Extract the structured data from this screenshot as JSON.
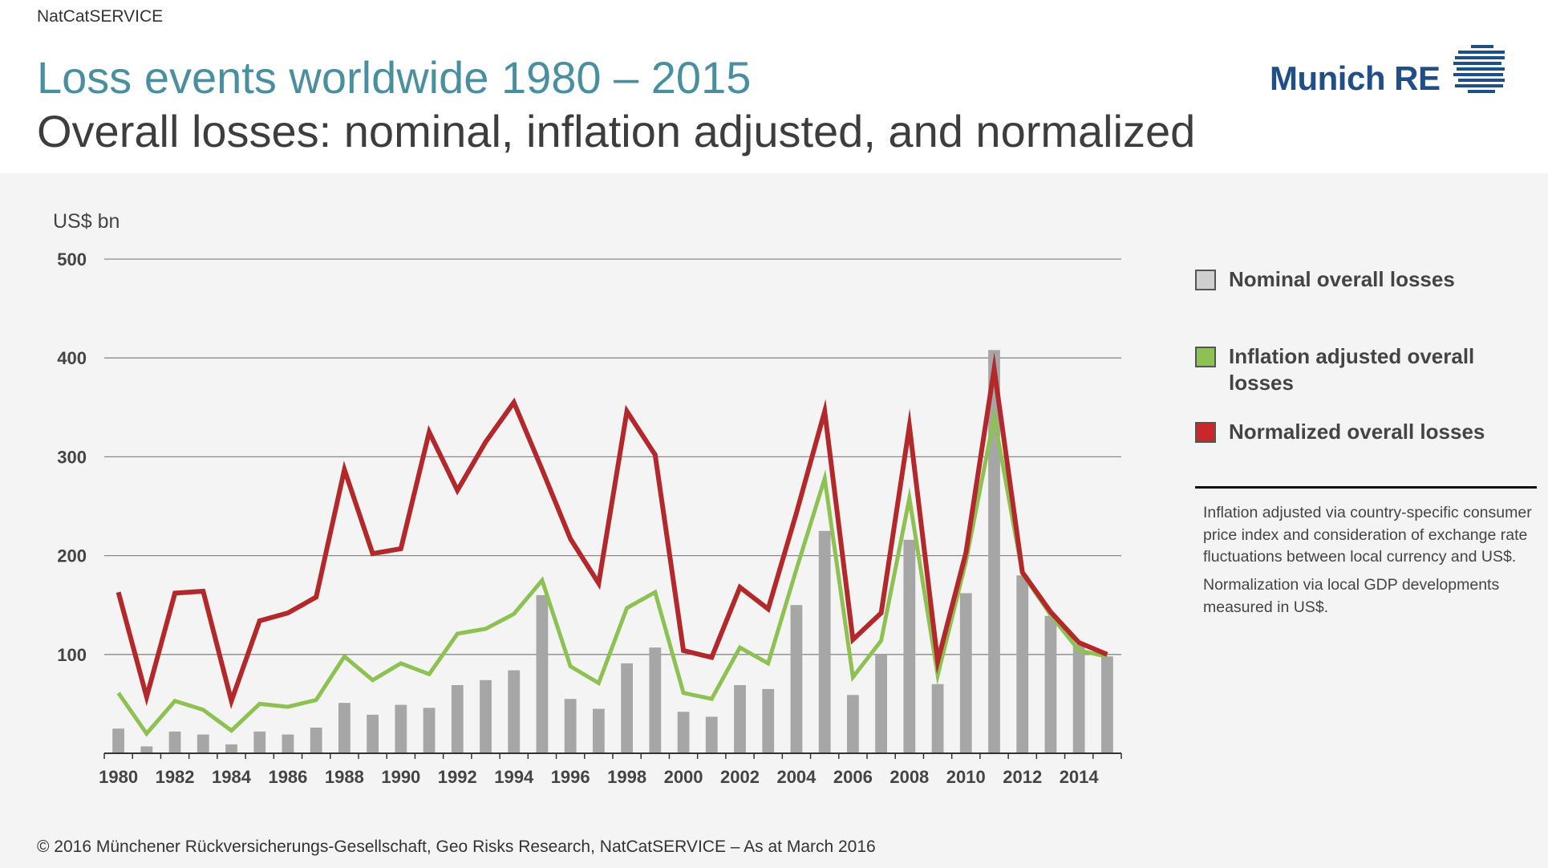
{
  "header": {
    "source_tag": "NatCatSERVICE",
    "title": "Loss events worldwide 1980 – 2015",
    "subtitle": "Overall losses: nominal, inflation adjusted, and normalized"
  },
  "logo": {
    "text": "Munich RE",
    "icon": "munich-re-logo-icon"
  },
  "chart_data": {
    "type": "bar",
    "ylabel": "US$ bn",
    "ylim": [
      0,
      500
    ],
    "yticks": [
      100,
      200,
      300,
      400,
      500
    ],
    "x_tick_labels": [
      "1980",
      "1982",
      "1984",
      "1986",
      "1988",
      "1990",
      "1992",
      "1994",
      "1996",
      "1998",
      "2000",
      "2002",
      "2004",
      "2006",
      "2008",
      "2010",
      "2012",
      "2014"
    ],
    "x": [
      1980,
      1981,
      1982,
      1983,
      1984,
      1985,
      1986,
      1987,
      1988,
      1989,
      1990,
      1991,
      1992,
      1993,
      1994,
      1995,
      1996,
      1997,
      1998,
      1999,
      2000,
      2001,
      2002,
      2003,
      2004,
      2005,
      2006,
      2007,
      2008,
      2009,
      2010,
      2011,
      2012,
      2013,
      2014,
      2015
    ],
    "grid": true,
    "legend_position": "right",
    "series": [
      {
        "name": "Nominal overall losses",
        "type": "bar",
        "color": "#a6a6a6",
        "values": [
          25,
          7,
          22,
          19,
          9,
          22,
          19,
          26,
          51,
          39,
          49,
          46,
          69,
          74,
          84,
          160,
          55,
          45,
          91,
          107,
          42,
          37,
          69,
          65,
          150,
          225,
          59,
          100,
          216,
          70,
          162,
          408,
          180,
          139,
          110,
          98
        ]
      },
      {
        "name": "Inflation adjusted overall losses",
        "type": "line",
        "color": "#8dc152",
        "values": [
          61,
          20,
          53,
          44,
          23,
          50,
          47,
          54,
          98,
          74,
          91,
          80,
          121,
          126,
          141,
          175,
          88,
          71,
          147,
          163,
          61,
          55,
          107,
          91,
          186,
          278,
          77,
          114,
          258,
          79,
          194,
          340,
          182,
          140,
          104,
          98
        ]
      },
      {
        "name": "Normalized overall losses",
        "type": "line",
        "color": "#b2282b",
        "values": [
          163,
          57,
          162,
          164,
          53,
          134,
          142,
          158,
          287,
          202,
          207,
          325,
          266,
          315,
          355,
          287,
          217,
          172,
          346,
          302,
          104,
          97,
          168,
          146,
          243,
          346,
          115,
          142,
          331,
          93,
          203,
          389,
          183,
          143,
          112,
          100
        ]
      }
    ]
  },
  "legend": {
    "items": [
      {
        "label": "Nominal overall losses",
        "color": "#cfcfcf"
      },
      {
        "label": "Inflation adjusted overall losses",
        "color": "#8dc152"
      },
      {
        "label": "Normalized overall losses",
        "color": "#c8282b"
      }
    ]
  },
  "notes": {
    "inflation": "Inflation adjusted via country-specific consumer price index and consideration of exchange rate fluctuations between local currency and US$.",
    "normalization": "Normalization via local GDP developments measured in US$."
  },
  "footer": {
    "copyright": "© 2016 Münchener Rückversicherungs-Gesellschaft, Geo Risks Research, NatCatSERVICE – As at March 2016"
  }
}
